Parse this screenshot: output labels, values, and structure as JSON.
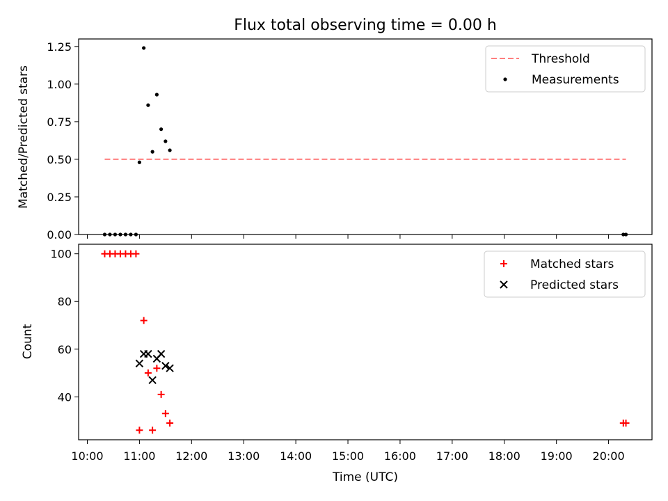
{
  "chart_data": [
    {
      "type": "scatter",
      "title": "Flux total observing time = 0.00 h",
      "xlabel": "",
      "ylabel": "Matched/Predicted stars",
      "xlim": [
        "09:50",
        "20:50"
      ],
      "ylim": [
        0,
        1.3
      ],
      "yticks": [
        0.0,
        0.25,
        0.5,
        0.75,
        1.0,
        1.25
      ],
      "ytick_labels": [
        "0.00",
        "0.25",
        "0.50",
        "0.75",
        "1.00",
        "1.25"
      ],
      "legend_position": "top-right",
      "series": [
        {
          "name": "Threshold",
          "kind": "dashed-line",
          "color": "#ff7f7f",
          "x": [
            "10:20",
            "20:20"
          ],
          "y": [
            0.5,
            0.5
          ]
        },
        {
          "name": "Measurements",
          "kind": "points",
          "color": "#000000",
          "x": [
            "10:20",
            "10:26",
            "10:32",
            "10:38",
            "10:44",
            "10:50",
            "10:56",
            "11:00",
            "11:05",
            "11:10",
            "11:15",
            "11:20",
            "11:25",
            "11:30",
            "11:35",
            "20:17",
            "20:20"
          ],
          "y": [
            0,
            0,
            0,
            0,
            0,
            0,
            0,
            0.48,
            1.24,
            0.86,
            0.55,
            0.93,
            0.7,
            0.62,
            0.56,
            0,
            0
          ]
        }
      ]
    },
    {
      "type": "scatter",
      "title": "",
      "xlabel": "Time (UTC)",
      "ylabel": "Count",
      "xlim": [
        "09:50",
        "20:50"
      ],
      "ylim": [
        22,
        104
      ],
      "yticks": [
        40,
        60,
        80,
        100
      ],
      "xtick_labels": [
        "10:00",
        "11:00",
        "12:00",
        "13:00",
        "14:00",
        "15:00",
        "16:00",
        "17:00",
        "18:00",
        "19:00",
        "20:00"
      ],
      "legend_position": "top-right",
      "series": [
        {
          "name": "Matched stars",
          "marker": "plus",
          "color": "#ff0000",
          "x": [
            "10:20",
            "10:26",
            "10:32",
            "10:38",
            "10:44",
            "10:50",
            "10:56",
            "11:00",
            "11:05",
            "11:10",
            "11:15",
            "11:20",
            "11:25",
            "11:30",
            "11:35",
            "20:17",
            "20:20"
          ],
          "y": [
            100,
            100,
            100,
            100,
            100,
            100,
            100,
            26,
            72,
            50,
            26,
            52,
            41,
            33,
            29,
            29,
            29
          ]
        },
        {
          "name": "Predicted stars",
          "marker": "x",
          "color": "#000000",
          "x": [
            "11:00",
            "11:05",
            "11:10",
            "11:15",
            "11:20",
            "11:25",
            "11:30",
            "11:35"
          ],
          "y": [
            54,
            58,
            58,
            47,
            56,
            58,
            53,
            52
          ]
        }
      ]
    }
  ]
}
